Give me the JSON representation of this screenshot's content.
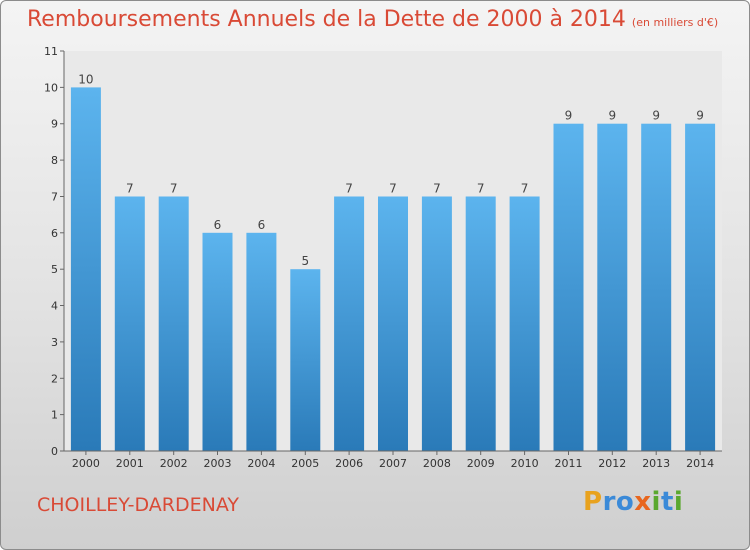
{
  "header": {
    "title": "Remboursements Annuels de la Dette de 2000 à 2014",
    "subtitle": "(en milliers d'€)"
  },
  "footer": {
    "commune": "CHOILLEY-DARDENAY",
    "brand": "Proxiti",
    "brand_letters": [
      "P",
      "r",
      "o",
      "x",
      "i",
      "t",
      "i"
    ],
    "brand_colors": [
      "#e8a21e",
      "#3b8ad8",
      "#3b8ad8",
      "#e8661e",
      "#5aa82e",
      "#3b8ad8",
      "#5aa82e"
    ]
  },
  "chart_data": {
    "type": "bar",
    "title": "Remboursements Annuels de la Dette de 2000 à 2014",
    "subtitle": "(en milliers d'€)",
    "xlabel": "",
    "ylabel": "",
    "categories": [
      "2000",
      "2001",
      "2002",
      "2003",
      "2004",
      "2005",
      "2006",
      "2007",
      "2008",
      "2009",
      "2010",
      "2011",
      "2012",
      "2013",
      "2014"
    ],
    "values": [
      10,
      7,
      7,
      6,
      6,
      5,
      7,
      7,
      7,
      7,
      7,
      9,
      9,
      9,
      9
    ],
    "ylim": [
      0,
      11
    ],
    "yticks": [
      0,
      1,
      2,
      3,
      4,
      5,
      6,
      7,
      8,
      9,
      10,
      11
    ],
    "grid": false,
    "bar_color_top": "#5cb4ee",
    "bar_color_bottom": "#2a7ab8",
    "data_labels": true
  }
}
